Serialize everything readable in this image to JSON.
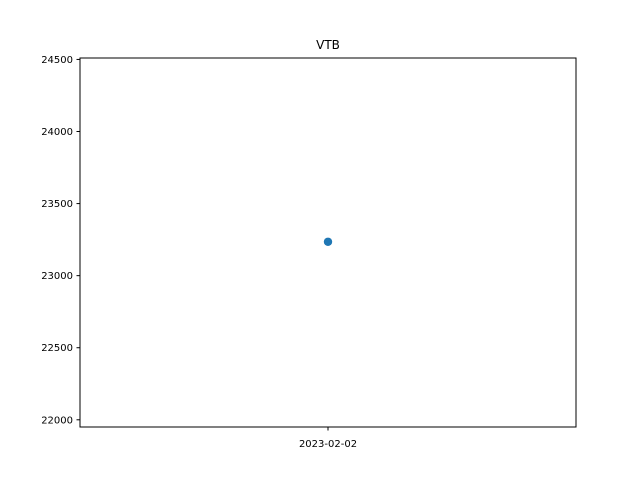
{
  "chart_data": {
    "type": "scatter",
    "title": "VTB",
    "xlabel": "",
    "ylabel": "",
    "x": [
      "2023-02-02"
    ],
    "series": [
      {
        "values": [
          23235
        ],
        "color": "#1f77b4"
      }
    ],
    "ylim": [
      21950,
      24510
    ],
    "yticks": [
      22000,
      22500,
      23000,
      23500,
      24000,
      24500
    ],
    "xticks": [
      "2023-02-02"
    ],
    "grid": false
  }
}
